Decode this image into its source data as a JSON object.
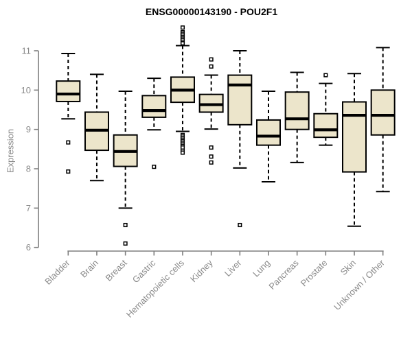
{
  "chart_data": {
    "type": "boxplot",
    "title": "ENSG00000143190 - POU2F1",
    "ylabel": "Expression",
    "xlabel": "",
    "ylim": [
      6,
      11
    ],
    "yticks": [
      6,
      7,
      8,
      9,
      10,
      11
    ],
    "grid": false,
    "legend": "none",
    "colors": {
      "box_fill": "#ECE5CB",
      "box_stroke": "#000000",
      "median": "#000000",
      "axis": "#7f7f7f",
      "tick_label": "#8a8a8a",
      "title": "#000000",
      "outlier_fill": "#ffffff",
      "background": "#ffffff"
    },
    "categories": [
      "Bladder",
      "Brain",
      "Breast",
      "Gastric",
      "Hematopoietic cells",
      "Kidney",
      "Liver",
      "Lung",
      "Pancreas",
      "Prostate",
      "Skin",
      "Unknown / Other"
    ],
    "boxes": [
      {
        "label": "Bladder",
        "whisker_low": 9.27,
        "q1": 9.71,
        "median": 9.9,
        "q3": 10.23,
        "whisker_high": 10.93,
        "outliers": [
          8.67,
          7.93
        ]
      },
      {
        "label": "Brain",
        "whisker_low": 7.7,
        "q1": 8.47,
        "median": 8.98,
        "q3": 9.44,
        "whisker_high": 10.4,
        "outliers": []
      },
      {
        "label": "Breast",
        "whisker_low": 7.0,
        "q1": 8.06,
        "median": 8.44,
        "q3": 8.86,
        "whisker_high": 9.97,
        "outliers": [
          6.57,
          6.1
        ]
      },
      {
        "label": "Gastric",
        "whisker_low": 8.99,
        "q1": 9.31,
        "median": 9.48,
        "q3": 9.86,
        "whisker_high": 10.3,
        "outliers": [
          8.05
        ]
      },
      {
        "label": "Hematopoietic cells",
        "whisker_low": 8.95,
        "q1": 9.69,
        "median": 10.0,
        "q3": 10.33,
        "whisker_high": 11.13,
        "outliers": [
          11.59,
          11.47,
          11.43,
          11.39,
          11.35,
          11.31,
          11.27,
          11.23,
          11.19,
          8.86,
          8.82,
          8.78,
          8.74,
          8.7,
          8.66,
          8.62,
          8.58,
          8.54,
          8.46,
          8.41
        ]
      },
      {
        "label": "Kidney",
        "whisker_low": 9.01,
        "q1": 9.44,
        "median": 9.63,
        "q3": 9.89,
        "whisker_high": 10.38,
        "outliers": [
          10.78,
          10.6,
          8.54,
          8.31,
          8.16
        ]
      },
      {
        "label": "Liver",
        "whisker_low": 8.02,
        "q1": 9.12,
        "median": 10.13,
        "q3": 10.38,
        "whisker_high": 11.0,
        "outliers": [
          6.57
        ]
      },
      {
        "label": "Lung",
        "whisker_low": 7.67,
        "q1": 8.6,
        "median": 8.83,
        "q3": 9.24,
        "whisker_high": 9.97,
        "outliers": []
      },
      {
        "label": "Pancreas",
        "whisker_low": 8.16,
        "q1": 9.0,
        "median": 9.27,
        "q3": 9.95,
        "whisker_high": 10.45,
        "outliers": []
      },
      {
        "label": "Prostate",
        "whisker_low": 8.6,
        "q1": 8.8,
        "median": 8.99,
        "q3": 9.4,
        "whisker_high": 10.17,
        "outliers": [
          10.38
        ]
      },
      {
        "label": "Skin",
        "whisker_low": 6.54,
        "q1": 7.92,
        "median": 9.36,
        "q3": 9.7,
        "whisker_high": 10.42,
        "outliers": []
      },
      {
        "label": "Unknown / Other",
        "whisker_low": 7.42,
        "q1": 8.86,
        "median": 9.36,
        "q3": 10.0,
        "whisker_high": 11.08,
        "outliers": []
      }
    ]
  }
}
